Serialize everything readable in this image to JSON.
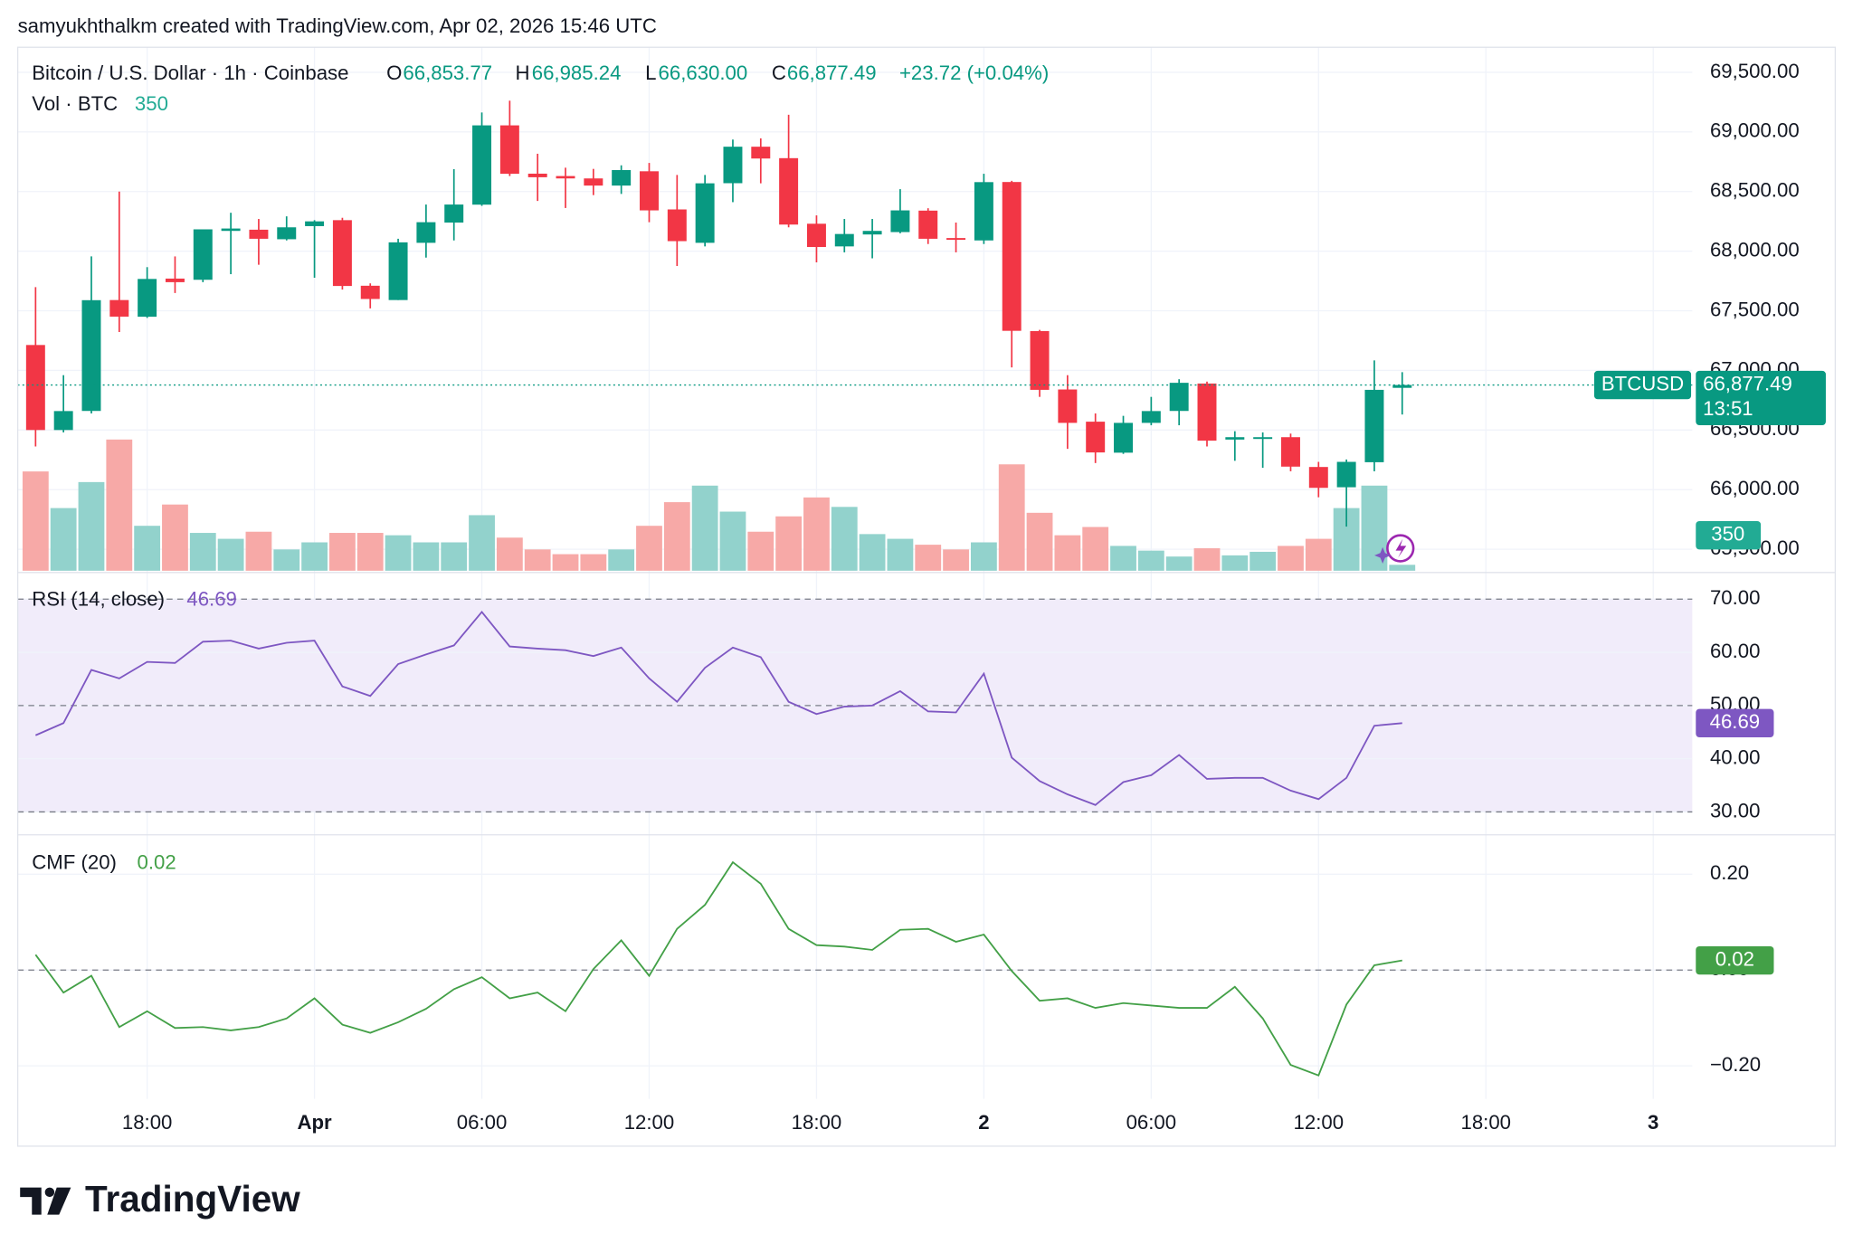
{
  "attribution": "samyukhthalkm created with TradingView.com, Apr 02, 2026 15:46 UTC",
  "brand": "TradingView",
  "chart_data": [
    {
      "type": "candlestick",
      "title": "Bitcoin / U.S. Dollar · 1h · Coinbase",
      "ohlc_labels": [
        {
          "key": "O",
          "label": "66,853.77"
        },
        {
          "key": "H",
          "label": "66,985.24"
        },
        {
          "key": "L",
          "label": "66,630.00"
        },
        {
          "key": "C",
          "label": "66,877.49"
        }
      ],
      "change_label": "+23.72 (+0.04%)",
      "symbol_tag": "BTCUSD",
      "countdown": "13:51",
      "up_color": "#089981",
      "down_color": "#f23645",
      "x": [
        0,
        1,
        2,
        3,
        4,
        5,
        6,
        7,
        8,
        9,
        10,
        11,
        12,
        13,
        14,
        15,
        16,
        17,
        18,
        19,
        20,
        21,
        22,
        23,
        24,
        25,
        26,
        27,
        28,
        29,
        30,
        31,
        32,
        33,
        34,
        35,
        36,
        37,
        38,
        39,
        40,
        41,
        42,
        43,
        44,
        45,
        46,
        47,
        48,
        49
      ],
      "open": [
        67213,
        66500,
        66660,
        67590,
        67450,
        67770,
        67760,
        68170,
        68180,
        68100,
        68210,
        68260,
        67710,
        67590,
        68070,
        68240,
        68390,
        69055,
        68650,
        68630,
        68610,
        68550,
        68670,
        68350,
        68070,
        68570,
        68876,
        68780,
        68230,
        68040,
        68140,
        68160,
        68340,
        68110,
        68090,
        68580,
        67330,
        66840,
        66570,
        66310,
        66560,
        66660,
        66890,
        66420,
        66430,
        66440,
        66190,
        66020,
        66230,
        66853.77
      ],
      "high": [
        67698,
        66960,
        67956,
        68500,
        67866,
        67956,
        68183,
        68322,
        68270,
        68292,
        68260,
        68280,
        67730,
        68104,
        68391,
        68688,
        69163,
        69262,
        68817,
        68700,
        68690,
        68720,
        68740,
        68639,
        68639,
        68936,
        68946,
        69144,
        68300,
        68270,
        68270,
        68520,
        68360,
        68240,
        68649,
        68590,
        67340,
        66960,
        66639,
        66619,
        66778,
        66926,
        66906,
        66490,
        66480,
        66470,
        66233,
        66253,
        67084,
        66985.24
      ],
      "low": [
        66362,
        66480,
        66639,
        67322,
        67440,
        67649,
        67740,
        67807,
        67886,
        68090,
        67777,
        67678,
        67520,
        67590,
        67946,
        68090,
        68380,
        68630,
        68421,
        68362,
        68470,
        68480,
        68243,
        67876,
        68040,
        68411,
        68569,
        68200,
        67906,
        67990,
        67940,
        68150,
        68060,
        67990,
        68060,
        67025,
        66778,
        66342,
        66223,
        66300,
        66540,
        66540,
        66362,
        66242,
        66183,
        66154,
        65936,
        65690,
        66154,
        66630
      ],
      "close": [
        66500,
        66659,
        67589,
        67451,
        67767,
        67740,
        68183,
        68190,
        68104,
        68200,
        68250,
        67708,
        67599,
        68074,
        68243,
        68391,
        69055,
        68649,
        68620,
        68610,
        68550,
        68680,
        68342,
        68084,
        68569,
        68876,
        68777,
        68223,
        68035,
        68144,
        68170,
        68342,
        68104,
        68100,
        68579,
        67332,
        66837,
        66560,
        66312,
        66560,
        66659,
        66896,
        66411,
        66440,
        66440,
        66193,
        66015,
        66233,
        66837,
        66877.49
      ],
      "xlim": [
        -0.64,
        59.4
      ],
      "xticks": [
        {
          "value": 4,
          "label": "18:00"
        },
        {
          "value": 10,
          "label": "Apr"
        },
        {
          "value": 16,
          "label": "06:00"
        },
        {
          "value": 22,
          "label": "12:00"
        },
        {
          "value": 28,
          "label": "18:00"
        },
        {
          "value": 34,
          "label": "2"
        },
        {
          "value": 40,
          "label": "06:00"
        },
        {
          "value": 46,
          "label": "12:00"
        },
        {
          "value": 52,
          "label": "18:00"
        },
        {
          "value": 58,
          "label": "3"
        }
      ],
      "ylim": [
        65320,
        69710
      ],
      "yticks": [
        {
          "value": 65500,
          "label": "65,500.00"
        },
        {
          "value": 66000,
          "label": "66,000.00"
        },
        {
          "value": 66500,
          "label": "66,500.00"
        },
        {
          "value": 67000,
          "label": "67,000.00"
        },
        {
          "value": 67500,
          "label": "67,500.00"
        },
        {
          "value": 68000,
          "label": "68,000.00"
        },
        {
          "value": 68500,
          "label": "68,500.00"
        },
        {
          "value": 69000,
          "label": "69,000.00"
        },
        {
          "value": 69500,
          "label": "69,500.00"
        }
      ],
      "grid": true,
      "volume": {
        "name": "Vol · BTC",
        "up_color": "#92d2cc",
        "down_color": "#f7a9a7",
        "ylim": [
          0,
          31000
        ],
        "values": [
          5880,
          3710,
          5250,
          7770,
          2660,
          3920,
          2240,
          1890,
          2310,
          1260,
          1680,
          2240,
          2240,
          2100,
          1680,
          1680,
          3290,
          1960,
          1260,
          980,
          980,
          1260,
          2660,
          4060,
          5040,
          3500,
          2310,
          3220,
          4340,
          3780,
          2170,
          1890,
          1540,
          1260,
          1680,
          6300,
          3430,
          2100,
          2590,
          1470,
          1190,
          840,
          1330,
          910,
          1120,
          1470,
          1890,
          3710,
          5040,
          350
        ]
      }
    },
    {
      "type": "line",
      "title": "RSI (14, close)",
      "color": "#7e57c2",
      "band": [
        30,
        70
      ],
      "band_color": "#f1ecfa",
      "levels": [
        70,
        50,
        30
      ],
      "x": [
        0,
        1,
        2,
        3,
        4,
        5,
        6,
        7,
        8,
        9,
        10,
        11,
        12,
        13,
        14,
        15,
        16,
        17,
        18,
        19,
        20,
        21,
        22,
        23,
        24,
        25,
        26,
        27,
        28,
        29,
        30,
        31,
        32,
        33,
        34,
        35,
        36,
        37,
        38,
        39,
        40,
        41,
        42,
        43,
        44,
        45,
        46,
        47,
        48,
        49
      ],
      "values": [
        44.4,
        46.7,
        56.7,
        55.1,
        58.2,
        58.0,
        62.0,
        62.2,
        60.7,
        61.8,
        62.2,
        53.6,
        51.8,
        57.8,
        59.6,
        61.3,
        67.6,
        61.1,
        60.7,
        60.4,
        59.3,
        60.9,
        55.1,
        50.7,
        57.1,
        60.9,
        59.1,
        50.7,
        48.4,
        49.8,
        50.0,
        52.7,
        48.9,
        48.7,
        56.0,
        40.2,
        35.8,
        33.3,
        31.3,
        35.6,
        36.9,
        40.7,
        36.2,
        36.4,
        36.4,
        34.0,
        32.4,
        36.4,
        46.2,
        46.69
      ],
      "xlim": [
        -0.64,
        59.4
      ],
      "ylim": [
        25.8,
        74.9
      ],
      "yticks": [
        {
          "value": 30,
          "label": "30.00"
        },
        {
          "value": 40,
          "label": "40.00"
        },
        {
          "value": 50,
          "label": "50.00"
        },
        {
          "value": 60,
          "label": "60.00"
        },
        {
          "value": 70,
          "label": "70.00"
        }
      ]
    },
    {
      "type": "line",
      "title": "CMF (20)",
      "color": "#43a047",
      "levels": [
        0
      ],
      "x": [
        0,
        1,
        2,
        3,
        4,
        5,
        6,
        7,
        8,
        9,
        10,
        11,
        12,
        13,
        14,
        15,
        16,
        17,
        18,
        19,
        20,
        21,
        22,
        23,
        24,
        25,
        26,
        27,
        28,
        29,
        30,
        31,
        32,
        33,
        34,
        35,
        36,
        37,
        38,
        39,
        40,
        41,
        42,
        43,
        44,
        45,
        46,
        47,
        48,
        49
      ],
      "values": [
        0.032,
        -0.047,
        -0.012,
        -0.119,
        -0.086,
        -0.121,
        -0.119,
        -0.126,
        -0.119,
        -0.101,
        -0.059,
        -0.114,
        -0.131,
        -0.109,
        -0.081,
        -0.04,
        -0.015,
        -0.059,
        -0.047,
        -0.086,
        0.002,
        0.062,
        -0.012,
        0.086,
        0.136,
        0.225,
        0.18,
        0.086,
        0.052,
        0.049,
        0.042,
        0.084,
        0.086,
        0.059,
        0.074,
        -0.002,
        -0.064,
        -0.059,
        -0.079,
        -0.069,
        -0.074,
        -0.079,
        -0.079,
        -0.035,
        -0.101,
        -0.198,
        -0.22,
        -0.072,
        0.01,
        0.02
      ],
      "xlim": [
        -0.64,
        59.4
      ],
      "ylim": [
        -0.269,
        0.281
      ],
      "yticks": [
        {
          "value": -0.2,
          "label": "−0.20"
        },
        {
          "value": 0,
          "label": "0.00"
        },
        {
          "value": 0.2,
          "label": "0.20"
        }
      ]
    }
  ]
}
